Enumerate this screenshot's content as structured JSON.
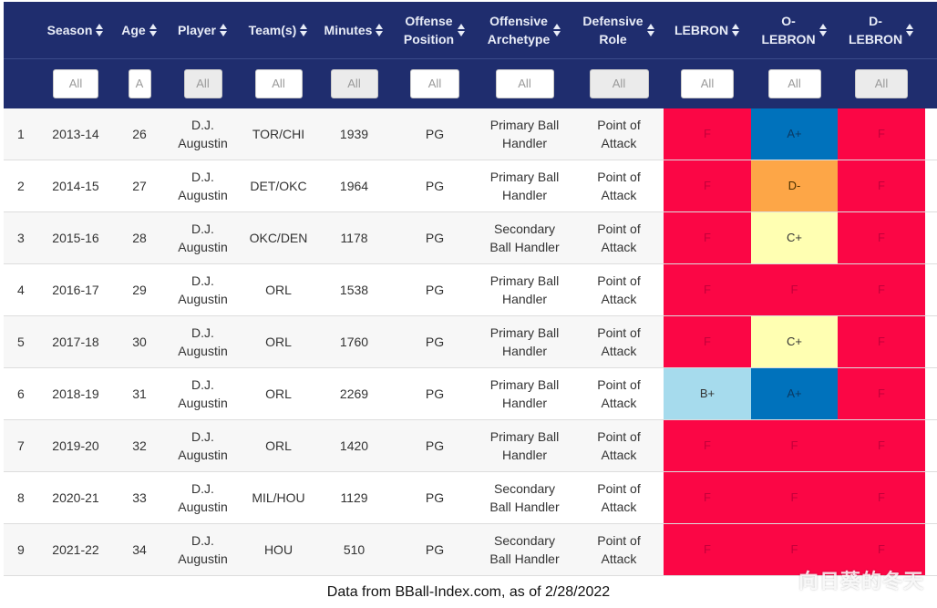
{
  "header": {
    "columns": [
      "",
      "Season",
      "Age",
      "Player",
      "Team(s)",
      "Minutes",
      "Offense\nPosition",
      "Offensive\nArchetype",
      "Defensive\nRole",
      "LEBRON",
      "O-\nLEBRON",
      "D-\nLEBRON"
    ]
  },
  "filters": [
    "",
    "All",
    "A",
    "All",
    "All",
    "All",
    "All",
    "All",
    "All",
    "All",
    "All",
    "All"
  ],
  "rows": [
    {
      "idx": "1",
      "season": "2013-14",
      "age": "26",
      "player": "D.J.\nAugustin",
      "team": "TOR/CHI",
      "minutes": "1939",
      "pos": "PG",
      "arch": "Primary Ball\nHandler",
      "role": "Point of\nAttack",
      "lebron": "F",
      "olebron": "A+",
      "dlebron": "F"
    },
    {
      "idx": "2",
      "season": "2014-15",
      "age": "27",
      "player": "D.J.\nAugustin",
      "team": "DET/OKC",
      "minutes": "1964",
      "pos": "PG",
      "arch": "Primary Ball\nHandler",
      "role": "Point of\nAttack",
      "lebron": "F",
      "olebron": "D-",
      "dlebron": "F"
    },
    {
      "idx": "3",
      "season": "2015-16",
      "age": "28",
      "player": "D.J.\nAugustin",
      "team": "OKC/DEN",
      "minutes": "1178",
      "pos": "PG",
      "arch": "Secondary\nBall Handler",
      "role": "Point of\nAttack",
      "lebron": "F",
      "olebron": "C+",
      "dlebron": "F"
    },
    {
      "idx": "4",
      "season": "2016-17",
      "age": "29",
      "player": "D.J.\nAugustin",
      "team": "ORL",
      "minutes": "1538",
      "pos": "PG",
      "arch": "Primary Ball\nHandler",
      "role": "Point of\nAttack",
      "lebron": "F",
      "olebron": "F",
      "dlebron": "F"
    },
    {
      "idx": "5",
      "season": "2017-18",
      "age": "30",
      "player": "D.J.\nAugustin",
      "team": "ORL",
      "minutes": "1760",
      "pos": "PG",
      "arch": "Primary Ball\nHandler",
      "role": "Point of\nAttack",
      "lebron": "F",
      "olebron": "C+",
      "dlebron": "F"
    },
    {
      "idx": "6",
      "season": "2018-19",
      "age": "31",
      "player": "D.J.\nAugustin",
      "team": "ORL",
      "minutes": "2269",
      "pos": "PG",
      "arch": "Primary Ball\nHandler",
      "role": "Point of\nAttack",
      "lebron": "B+",
      "olebron": "A+",
      "dlebron": "F"
    },
    {
      "idx": "7",
      "season": "2019-20",
      "age": "32",
      "player": "D.J.\nAugustin",
      "team": "ORL",
      "minutes": "1420",
      "pos": "PG",
      "arch": "Primary Ball\nHandler",
      "role": "Point of\nAttack",
      "lebron": "F",
      "olebron": "F",
      "dlebron": "F"
    },
    {
      "idx": "8",
      "season": "2020-21",
      "age": "33",
      "player": "D.J.\nAugustin",
      "team": "MIL/HOU",
      "minutes": "1129",
      "pos": "PG",
      "arch": "Secondary\nBall Handler",
      "role": "Point of\nAttack",
      "lebron": "F",
      "olebron": "F",
      "dlebron": "F"
    },
    {
      "idx": "9",
      "season": "2021-22",
      "age": "34",
      "player": "D.J.\nAugustin",
      "team": "HOU",
      "minutes": "510",
      "pos": "PG",
      "arch": "Secondary\nBall Handler",
      "role": "Point of\nAttack",
      "lebron": "F",
      "olebron": "F",
      "dlebron": "F"
    }
  ],
  "grade_colors": {
    "F": "#fb0645",
    "A+": "#0072bc",
    "D-": "#fda647",
    "C+": "#ffffb2",
    "B+": "#a6dbed"
  },
  "header_color": "#1f2d6e",
  "footer": {
    "source": "Data from BBall-Index.com, as of 2/28/2022",
    "watermark": "向日葵的冬天"
  }
}
